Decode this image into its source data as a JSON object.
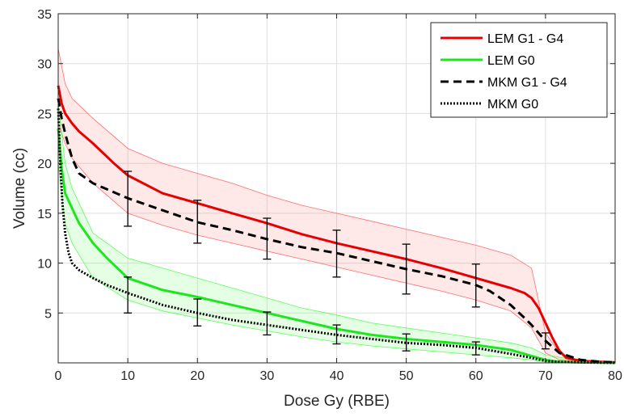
{
  "chart_data": {
    "type": "line",
    "title": "",
    "xlabel": "Dose Gy (RBE)",
    "ylabel": "Volume (cc)",
    "xlim": [
      0,
      80
    ],
    "ylim": [
      0,
      35
    ],
    "xticks": [
      0,
      10,
      20,
      30,
      40,
      50,
      60,
      70,
      80
    ],
    "yticks": [
      5,
      10,
      15,
      20,
      25,
      30,
      35
    ],
    "grid": true,
    "legend_position": "top-right",
    "bands": [
      {
        "series": "LEM G1 - G4",
        "color": "#ff4d4d",
        "x": [
          0,
          1,
          2,
          5,
          10,
          15,
          20,
          25,
          30,
          35,
          40,
          45,
          50,
          55,
          60,
          65,
          68,
          70,
          72,
          75,
          80
        ],
        "upper": [
          31.5,
          28,
          26.5,
          24.5,
          21.5,
          20,
          19,
          18,
          16.8,
          15.8,
          15,
          14.2,
          13.4,
          12.6,
          11.8,
          10.8,
          9.5,
          3,
          1,
          0.2,
          0.1
        ],
        "lower": [
          24,
          22,
          20.5,
          18,
          15,
          13.8,
          12.8,
          12,
          11.2,
          10.4,
          9.6,
          8.8,
          8,
          7.2,
          6.3,
          5.2,
          3.5,
          1,
          0.3,
          0.1,
          0
        ]
      },
      {
        "series": "LEM G0",
        "color": "#33ff33",
        "x": [
          0,
          1,
          2,
          5,
          10,
          15,
          20,
          25,
          30,
          35,
          40,
          45,
          50,
          55,
          60,
          65,
          68,
          70,
          75,
          80
        ],
        "upper": [
          26,
          20,
          17.5,
          13,
          10.5,
          9.5,
          8.5,
          7.5,
          6.5,
          5.5,
          4.8,
          4,
          3.5,
          3,
          2.5,
          2,
          1.5,
          0.8,
          0.2,
          0.1
        ],
        "lower": [
          20,
          14,
          12,
          8.5,
          6.3,
          5.2,
          4.5,
          3.8,
          3.2,
          2.6,
          2.1,
          1.7,
          1.4,
          1.1,
          0.8,
          0.5,
          0.3,
          0.1,
          0,
          0
        ]
      }
    ],
    "series": [
      {
        "name": "LEM G1 - G4",
        "color": "#e60000",
        "style": "solid",
        "x": [
          0,
          0.5,
          1,
          2,
          3,
          5,
          8,
          10,
          15,
          20,
          25,
          30,
          35,
          40,
          45,
          50,
          55,
          60,
          62,
          65,
          67,
          68,
          69,
          70,
          71,
          72,
          73,
          75,
          78,
          80
        ],
        "y": [
          27.8,
          26,
          25,
          24,
          23.2,
          22,
          20,
          18.8,
          17,
          16,
          15,
          14,
          12.9,
          12,
          11.2,
          10.4,
          9.5,
          8.5,
          8.1,
          7.5,
          7,
          6.5,
          5.5,
          4,
          2.5,
          1.2,
          0.5,
          0.2,
          0.1,
          0.05
        ]
      },
      {
        "name": "LEM G0",
        "color": "#1ee61e",
        "style": "solid",
        "x": [
          0,
          0.5,
          1,
          2,
          3,
          5,
          7,
          10,
          15,
          20,
          25,
          30,
          35,
          40,
          45,
          50,
          55,
          60,
          65,
          68,
          70,
          72,
          75,
          80
        ],
        "y": [
          23.5,
          19.5,
          17,
          15.5,
          14,
          12,
          10.5,
          8.5,
          7.3,
          6.6,
          5.8,
          5,
          4.2,
          3.4,
          2.8,
          2.4,
          2.1,
          1.8,
          1.3,
          0.7,
          0.3,
          0.1,
          0.05,
          0
        ]
      },
      {
        "name": "MKM G1 - G4",
        "color": "#000000",
        "style": "dashed",
        "x": [
          0,
          0.5,
          1,
          2,
          3,
          5,
          10,
          15,
          20,
          25,
          30,
          35,
          40,
          45,
          50,
          55,
          60,
          62,
          65,
          67,
          68,
          70,
          72,
          75,
          78,
          80
        ],
        "y": [
          26.5,
          24.5,
          23,
          20.5,
          19,
          18,
          16.5,
          15.3,
          14.1,
          13.3,
          12.4,
          11.6,
          11,
          10.2,
          9.4,
          8.7,
          7.8,
          7.2,
          5.8,
          4.5,
          3.8,
          2.2,
          1,
          0.3,
          0.1,
          0.05
        ]
      },
      {
        "name": "MKM G0",
        "color": "#000000",
        "style": "dotted",
        "x": [
          0,
          0.3,
          0.6,
          1,
          1.5,
          2,
          3,
          5,
          7,
          10,
          15,
          20,
          25,
          30,
          35,
          40,
          45,
          50,
          55,
          60,
          65,
          68,
          70,
          72,
          75,
          80
        ],
        "y": [
          25.5,
          20,
          16,
          13,
          11,
          10,
          9.3,
          8.5,
          7.8,
          7,
          5.8,
          5,
          4.3,
          3.8,
          3.3,
          2.8,
          2.4,
          2,
          1.8,
          1.5,
          0.9,
          0.5,
          0.2,
          0.1,
          0.05,
          0
        ]
      }
    ],
    "error_bars": [
      {
        "x": 10,
        "y": 16.5,
        "lower": 13.7,
        "upper": 19.2
      },
      {
        "x": 10,
        "y": 6.8,
        "lower": 5.0,
        "upper": 8.6
      },
      {
        "x": 20,
        "y": 14.1,
        "lower": 12.0,
        "upper": 16.3
      },
      {
        "x": 20,
        "y": 5.0,
        "lower": 3.7,
        "upper": 6.4
      },
      {
        "x": 30,
        "y": 12.4,
        "lower": 10.4,
        "upper": 14.5
      },
      {
        "x": 30,
        "y": 4.0,
        "lower": 2.8,
        "upper": 5.1
      },
      {
        "x": 40,
        "y": 11.0,
        "lower": 8.6,
        "upper": 13.3
      },
      {
        "x": 40,
        "y": 2.9,
        "lower": 1.9,
        "upper": 3.8
      },
      {
        "x": 50,
        "y": 9.4,
        "lower": 6.9,
        "upper": 11.9
      },
      {
        "x": 50,
        "y": 2.0,
        "lower": 1.2,
        "upper": 2.9
      },
      {
        "x": 60,
        "y": 7.8,
        "lower": 5.6,
        "upper": 9.9
      },
      {
        "x": 60,
        "y": 1.5,
        "lower": 0.8,
        "upper": 2.1
      },
      {
        "x": 70,
        "y": 2.2,
        "lower": 1.4,
        "upper": 3.0
      }
    ]
  }
}
